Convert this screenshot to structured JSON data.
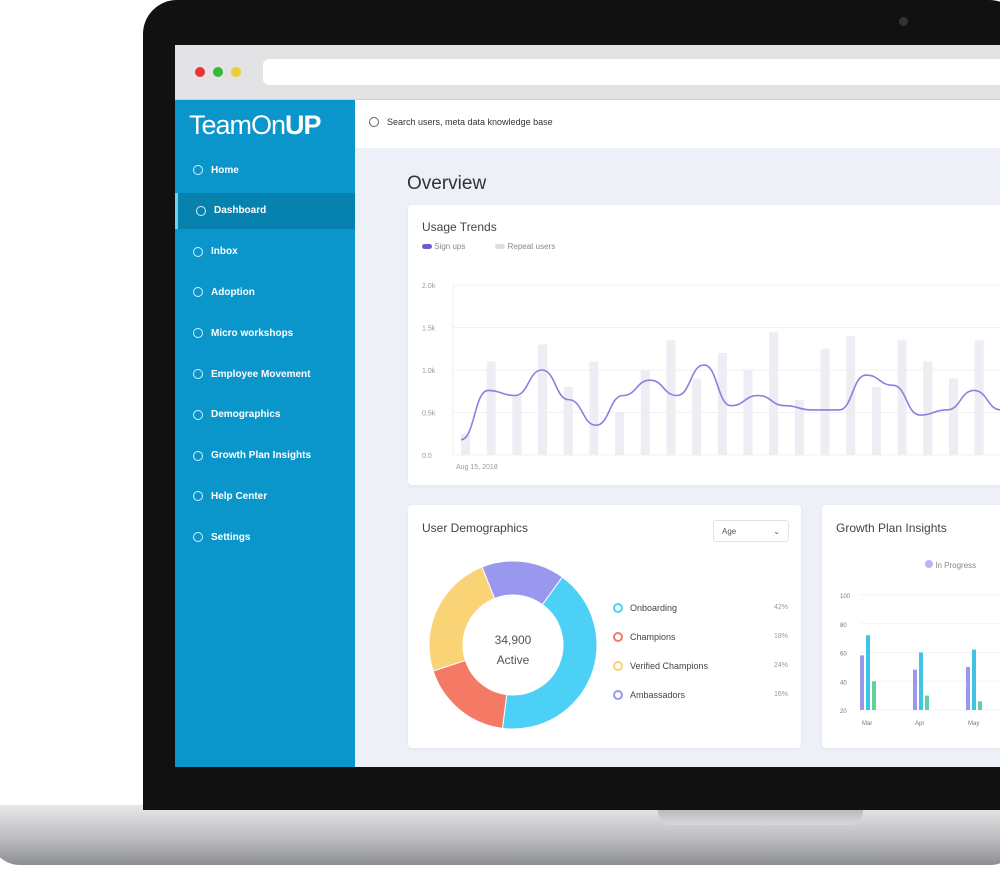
{
  "app": {
    "logo": "TeamOnUP",
    "search_placeholder": "Search users, meta data knowledge base"
  },
  "sidebar": {
    "items": [
      {
        "label": "Home",
        "icon": "home-icon"
      },
      {
        "label": "Dashboard",
        "icon": "dashboard-icon",
        "active": true
      },
      {
        "label": "Inbox",
        "icon": "inbox-icon"
      },
      {
        "label": "Adoption",
        "icon": "adoption-icon"
      },
      {
        "label": "Micro workshops",
        "icon": "workshop-icon"
      },
      {
        "label": "Employee Movement",
        "icon": "movement-icon"
      },
      {
        "label": "Demographics",
        "icon": "demographics-icon"
      },
      {
        "label": "Growth Plan Insights",
        "icon": "growth-icon"
      },
      {
        "label": "Help Center",
        "icon": "help-icon"
      },
      {
        "label": "Settings",
        "icon": "settings-icon"
      }
    ]
  },
  "main": {
    "title": "Overview"
  },
  "chart_data": [
    {
      "type": "line",
      "title": "Usage Trends",
      "legend": [
        "Sign ups",
        "Repeat users"
      ],
      "yticks": [
        "2.0k",
        "1.5k",
        "1.0k",
        "0.5k",
        "0.0"
      ],
      "ylim": [
        0,
        2000
      ],
      "xlabel_first": "Aug 15, 2018",
      "line_values": [
        180,
        760,
        700,
        1000,
        650,
        350,
        700,
        880,
        700,
        1060,
        580,
        700,
        580,
        530,
        530,
        940,
        820,
        470,
        530,
        760,
        530,
        700
      ],
      "bar_values": [
        250,
        1100,
        700,
        1300,
        800,
        1100,
        500,
        1000,
        1350,
        900,
        1200,
        1000,
        1450,
        650,
        1250,
        1400,
        800,
        1350,
        1100,
        900,
        1350,
        700
      ],
      "colors": {
        "line": "#8b7fe0",
        "bars": "#eceef3"
      }
    },
    {
      "type": "pie",
      "title": "User Demographics",
      "filter": "Age",
      "center_value": "34,900",
      "center_label": "Active",
      "slices": [
        {
          "name": "Onboarding",
          "value": 42,
          "label": "42%",
          "color": "#4dd0f5"
        },
        {
          "name": "Champions",
          "value": 18,
          "label": "18%",
          "color": "#f47a65"
        },
        {
          "name": "Verified Champions",
          "value": 24,
          "label": "24%",
          "color": "#fbd377"
        },
        {
          "name": "Ambassadors",
          "value": 16,
          "label": "16%",
          "color": "#9a97ee"
        }
      ]
    },
    {
      "type": "bar",
      "title": "Growth Plan Insights",
      "legend": [
        "In Progress"
      ],
      "yticks": [
        "100",
        "80",
        "60",
        "40",
        "20"
      ],
      "ylim": [
        20,
        100
      ],
      "categories": [
        "Mar",
        "Apr",
        "May"
      ],
      "series": [
        {
          "name": "In Progress",
          "values": [
            58,
            48,
            50
          ],
          "color": "#9a97ee"
        },
        {
          "values": [
            72,
            60,
            62
          ],
          "color": "#3fc4e8"
        },
        {
          "values": [
            40,
            30,
            26
          ],
          "color": "#5fd29a"
        }
      ]
    }
  ]
}
